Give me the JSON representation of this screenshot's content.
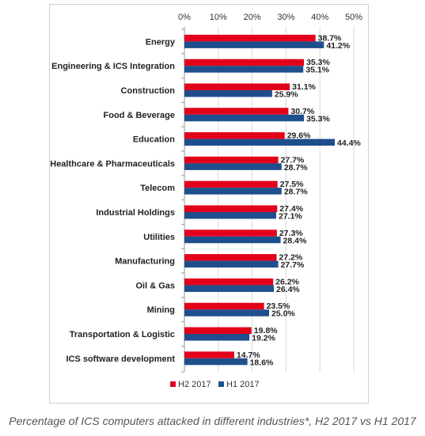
{
  "chart_data": {
    "type": "bar",
    "orientation": "horizontal",
    "categories": [
      "Energy",
      "Engineering & ICS Integration",
      "Construction",
      "Food & Beverage",
      "Education",
      "Healthcare & Pharmaceuticals",
      "Telecom",
      "Industrial Holdings",
      "Utilities",
      "Manufacturing",
      "Oil & Gas",
      "Mining",
      "Transportation & Logistic",
      "ICS software development"
    ],
    "series": [
      {
        "name": "H2 2017",
        "color": "#e2001a",
        "values": [
          38.7,
          35.3,
          31.1,
          30.7,
          29.6,
          27.7,
          27.5,
          27.4,
          27.3,
          27.2,
          26.2,
          23.5,
          19.8,
          14.7
        ]
      },
      {
        "name": "H1 2017",
        "color": "#1f4e8c",
        "values": [
          41.2,
          35.1,
          25.9,
          35.3,
          44.4,
          28.7,
          28.7,
          27.1,
          28.4,
          27.7,
          26.4,
          25.0,
          19.2,
          18.6
        ]
      }
    ],
    "xticks": [
      "0%",
      "10%",
      "20%",
      "30%",
      "40%",
      "50%"
    ],
    "xlim": [
      0,
      50
    ],
    "value_suffix": "%",
    "grid": true,
    "legend_position": "bottom"
  },
  "caption": "Percentage of ICS computers attacked in different industries*, H2 2017 vs H1 2017"
}
